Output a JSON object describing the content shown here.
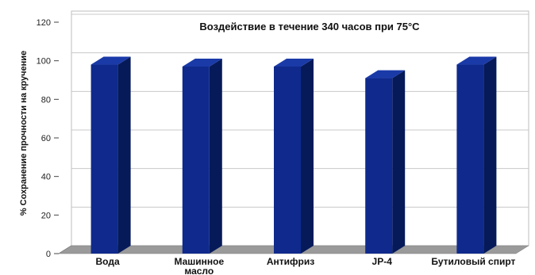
{
  "chart_data": {
    "type": "bar",
    "title": "Воздействие в течение 340 часов при 75°С",
    "xlabel": "",
    "ylabel": "% Сохранение прочности на кручение",
    "categories": [
      "Вода",
      "Машинное масло",
      "Антифриз",
      "JP-4",
      "Бутиловый спирт"
    ],
    "values": [
      98,
      97,
      97,
      91,
      98
    ],
    "ylim": [
      0,
      120
    ],
    "yticks": [
      0,
      20,
      40,
      60,
      80,
      100,
      120
    ],
    "grid": true,
    "legend": "none",
    "colors": {
      "bar_front": "#0f2a8c",
      "bar_side": "#061a5a",
      "bar_top": "#1a3aa8",
      "floor": "#9a9a9a",
      "grid": "#c8c8c8"
    }
  }
}
